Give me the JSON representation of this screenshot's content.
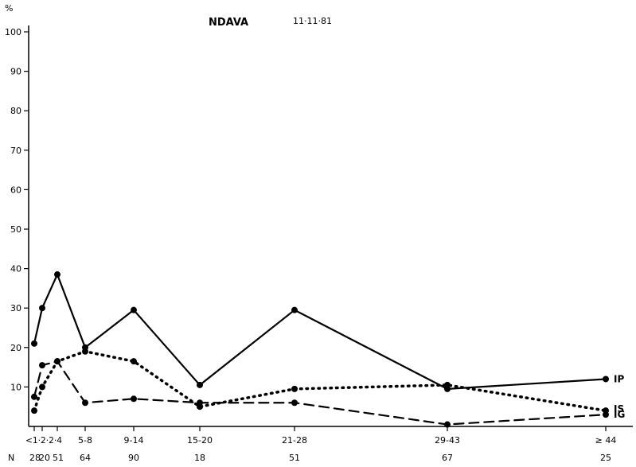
{
  "chart_data": {
    "type": "line",
    "title": "NDAVA",
    "date": "11·11·81",
    "ylabel": "%",
    "xlabel": "",
    "ylim": [
      0,
      100
    ],
    "yticks": [
      "10",
      "20",
      "30",
      "40",
      "50",
      "60",
      "70",
      "80",
      "90",
      "100"
    ],
    "categories": [
      "<1",
      "1-2",
      "2-4",
      "5-8",
      "9-14",
      "15-20",
      "21-28",
      "29-43",
      "≥ 44"
    ],
    "category_axis_label": "<1·2·2·4",
    "n_label": "N",
    "n_values": [
      "28",
      "20",
      "51",
      "64",
      "90",
      "18",
      "51",
      "67",
      "25"
    ],
    "series": [
      {
        "name": "IP",
        "style": "solid",
        "values": [
          21,
          30,
          38.5,
          20,
          29.5,
          10.5,
          29.5,
          9.5,
          12
        ]
      },
      {
        "name": "IS",
        "style": "dotted",
        "values": [
          4,
          10,
          16.5,
          19,
          16.5,
          5,
          9.5,
          10.5,
          4
        ]
      },
      {
        "name": "IG",
        "style": "dashed",
        "values": [
          7.5,
          15.5,
          16.5,
          6,
          7,
          6,
          6,
          0.5,
          3
        ]
      }
    ],
    "grid": false,
    "legend": "inline-right"
  }
}
